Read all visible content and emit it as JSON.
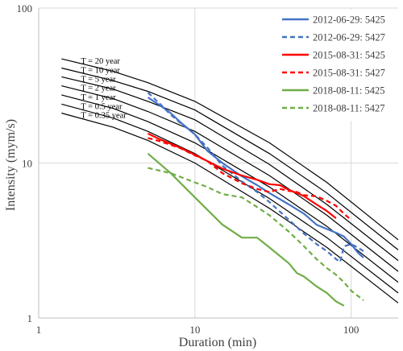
{
  "chart_data": {
    "type": "line",
    "title": "",
    "xlabel": "Duration (min)",
    "ylabel": "Intensity (mym/s)",
    "xscale": "log",
    "yscale": "log",
    "xlim": [
      1,
      200
    ],
    "ylim": [
      1,
      100
    ],
    "x_ticks": [
      1,
      10,
      100
    ],
    "x_tick_labels": [
      "1",
      "10",
      "100"
    ],
    "y_ticks": [
      1,
      10,
      100
    ],
    "y_tick_labels": [
      "1",
      "10",
      "100"
    ],
    "grid": "major",
    "legend_position": "top-right",
    "idf_curves": {
      "labels": [
        "T = 20 year",
        "T = 10 year",
        "T = 5 year",
        "T = 2 year",
        "T = 1 year",
        "T = 0.5 year",
        "T = 0.35 year"
      ],
      "color": "#000000",
      "x": [
        1.4,
        3,
        5,
        10,
        30,
        70,
        200
      ],
      "values": [
        [
          47,
          39,
          33,
          25,
          13.5,
          7.5,
          3.2
        ],
        [
          41,
          34,
          29,
          22,
          11.5,
          6.4,
          2.75
        ],
        [
          36,
          30,
          25,
          19,
          9.8,
          5.4,
          2.35
        ],
        [
          31.5,
          26,
          21.5,
          16,
          8.3,
          4.6,
          2.0
        ],
        [
          27.5,
          22.5,
          18.5,
          13.5,
          7.0,
          3.9,
          1.7
        ],
        [
          24,
          19.5,
          16,
          11.5,
          5.9,
          3.3,
          1.45
        ],
        [
          21,
          17,
          14,
          10,
          5.1,
          2.85,
          1.25
        ]
      ]
    },
    "series": [
      {
        "name": "2012-06-29: 5425",
        "color": "#4472c4",
        "dash": "solid",
        "x": [
          5,
          6,
          7,
          8,
          10,
          12,
          15,
          20,
          25,
          30,
          40,
          50,
          60,
          70,
          80,
          90,
          100,
          110,
          120
        ],
        "y": [
          26.5,
          23.5,
          21,
          18.5,
          15.3,
          12,
          10,
          8.2,
          7.2,
          6.4,
          5.4,
          4.7,
          4.0,
          3.75,
          3.55,
          3.35,
          3.0,
          2.65,
          2.45
        ]
      },
      {
        "name": "2012-06-29: 5427",
        "color": "#4472c4",
        "dash": "dashed",
        "x": [
          5,
          6,
          7,
          8,
          10,
          12,
          15,
          20,
          25,
          30,
          40,
          50,
          60,
          70,
          80,
          85,
          90,
          100,
          110,
          120
        ],
        "y": [
          28.5,
          24,
          20.5,
          18.3,
          15.3,
          12.6,
          9.6,
          7.6,
          6.5,
          5.6,
          4.3,
          3.5,
          3.0,
          2.7,
          2.4,
          2.3,
          2.9,
          3.0,
          2.85,
          2.7
        ]
      },
      {
        "name": "2015-08-31: 5425",
        "color": "#ff0000",
        "dash": "solid",
        "x": [
          5,
          6,
          8,
          10,
          12,
          15,
          20,
          25,
          30,
          35,
          40,
          45,
          50,
          60,
          70,
          80
        ],
        "y": [
          15.5,
          14.2,
          12.6,
          11.3,
          10.3,
          9.2,
          8.3,
          7.8,
          7.3,
          7.2,
          6.7,
          6.4,
          6.1,
          5.4,
          4.9,
          4.4
        ]
      },
      {
        "name": "2015-08-31: 5427",
        "color": "#ff0000",
        "dash": "dashed",
        "x": [
          5,
          6,
          8,
          10,
          12,
          15,
          20,
          25,
          30,
          35,
          40,
          45,
          50,
          60,
          70,
          80,
          90,
          100
        ],
        "y": [
          14.5,
          13.8,
          12.5,
          11.2,
          10.3,
          8.6,
          7.4,
          6.8,
          6.5,
          6.8,
          6.6,
          6.5,
          6.2,
          6.1,
          5.7,
          5.3,
          4.7,
          4.3
        ]
      },
      {
        "name": "2018-08-11: 5425",
        "color": "#70ad47",
        "dash": "solid",
        "x": [
          5,
          7,
          10,
          15,
          20,
          25,
          30,
          40,
          45,
          50,
          60,
          70,
          80,
          90
        ],
        "y": [
          11.5,
          8.6,
          6.0,
          4.0,
          3.3,
          3.3,
          2.85,
          2.25,
          1.95,
          1.85,
          1.6,
          1.45,
          1.28,
          1.2
        ]
      },
      {
        "name": "2018-08-11: 5427",
        "color": "#70ad47",
        "dash": "dashed",
        "x": [
          5,
          7,
          10,
          12,
          15,
          20,
          25,
          30,
          40,
          50,
          60,
          70,
          80,
          90,
          100,
          120
        ],
        "y": [
          9.3,
          8.6,
          7.5,
          7.0,
          6.3,
          6.0,
          5.2,
          4.6,
          3.6,
          2.9,
          2.4,
          2.1,
          1.9,
          1.7,
          1.5,
          1.3
        ]
      }
    ]
  }
}
